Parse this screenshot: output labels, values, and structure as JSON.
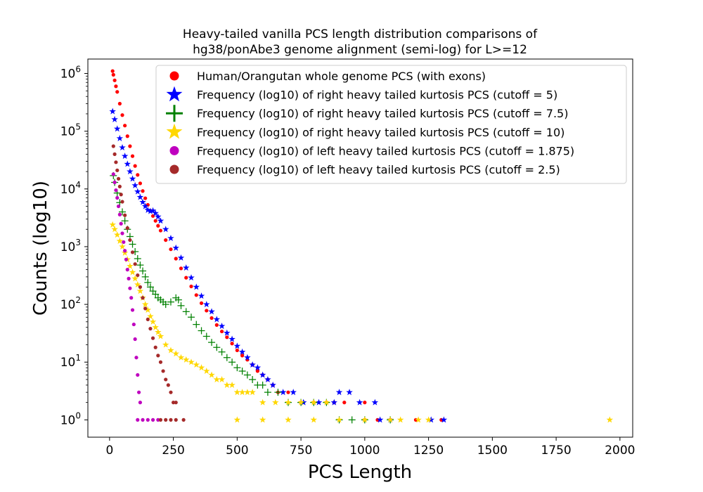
{
  "chart_data": {
    "type": "scatter",
    "title_lines": [
      "Heavy-tailed vanilla PCS length distribution comparisons of",
      "hg38/ponAbe3 genome alignment (semi-log) for L>=12"
    ],
    "xlabel": "PCS Length",
    "ylabel": "Counts (log10)",
    "x_ticks": [
      0,
      250,
      500,
      750,
      1000,
      1250,
      1500,
      1750,
      2000
    ],
    "x_tick_labels": [
      "0",
      "250",
      "500",
      "750",
      "1000",
      "1250",
      "1500",
      "1750",
      "2000"
    ],
    "y_ticks": [
      1,
      10,
      100,
      1000,
      10000,
      100000,
      1000000
    ],
    "y_tick_labels": [
      {
        "base": "10",
        "exp": "0"
      },
      {
        "base": "10",
        "exp": "1"
      },
      {
        "base": "10",
        "exp": "2"
      },
      {
        "base": "10",
        "exp": "3"
      },
      {
        "base": "10",
        "exp": "4"
      },
      {
        "base": "10",
        "exp": "5"
      },
      {
        "base": "10",
        "exp": "6"
      }
    ],
    "xlim": [
      -85,
      2050
    ],
    "ylim_log10": [
      -0.3,
      6.25
    ],
    "yscale": "log",
    "grid": false,
    "legend_position": "top-right",
    "series": [
      {
        "name": "Human/Orangutan whole genome PCS (with exons)",
        "color": "#ff0000",
        "marker": "circle",
        "points": [
          [
            12,
            1100000
          ],
          [
            15,
            950000
          ],
          [
            20,
            760000
          ],
          [
            25,
            600000
          ],
          [
            30,
            480000
          ],
          [
            40,
            300000
          ],
          [
            50,
            190000
          ],
          [
            60,
            125000
          ],
          [
            70,
            82000
          ],
          [
            80,
            55000
          ],
          [
            90,
            37000
          ],
          [
            100,
            25000
          ],
          [
            110,
            17500
          ],
          [
            120,
            12500
          ],
          [
            130,
            9200
          ],
          [
            140,
            6900
          ],
          [
            150,
            5300
          ],
          [
            160,
            4200
          ],
          [
            170,
            3400
          ],
          [
            180,
            2800
          ],
          [
            190,
            2300
          ],
          [
            200,
            1900
          ],
          [
            220,
            1300
          ],
          [
            240,
            900
          ],
          [
            260,
            620
          ],
          [
            280,
            420
          ],
          [
            300,
            290
          ],
          [
            320,
            205
          ],
          [
            340,
            145
          ],
          [
            360,
            105
          ],
          [
            380,
            78
          ],
          [
            400,
            58
          ],
          [
            420,
            44
          ],
          [
            440,
            34
          ],
          [
            460,
            27
          ],
          [
            480,
            21
          ],
          [
            500,
            16
          ],
          [
            520,
            13
          ],
          [
            540,
            11
          ],
          [
            560,
            9
          ],
          [
            580,
            7
          ],
          [
            600,
            6
          ],
          [
            620,
            5
          ],
          [
            640,
            4
          ],
          [
            660,
            3
          ],
          [
            700,
            3
          ],
          [
            750,
            2
          ],
          [
            800,
            2
          ],
          [
            850,
            2
          ],
          [
            880,
            2
          ],
          [
            920,
            2
          ],
          [
            1000,
            2
          ],
          [
            1000,
            1
          ],
          [
            1050,
            1
          ],
          [
            1100,
            1
          ],
          [
            1200,
            1
          ],
          [
            1300,
            1
          ]
        ]
      },
      {
        "name": "Frequency (log10) of right heavy tailed kurtosis PCS (cutoff = 5)",
        "color": "#0000ff",
        "marker": "star",
        "points": [
          [
            12,
            220000
          ],
          [
            20,
            160000
          ],
          [
            30,
            110000
          ],
          [
            40,
            75000
          ],
          [
            50,
            52000
          ],
          [
            60,
            37000
          ],
          [
            70,
            27000
          ],
          [
            80,
            20000
          ],
          [
            90,
            15000
          ],
          [
            100,
            11500
          ],
          [
            110,
            9000
          ],
          [
            120,
            7200
          ],
          [
            130,
            5900
          ],
          [
            140,
            5000
          ],
          [
            150,
            4300
          ],
          [
            160,
            4100
          ],
          [
            170,
            4200
          ],
          [
            180,
            3800
          ],
          [
            190,
            3300
          ],
          [
            200,
            2800
          ],
          [
            220,
            2000
          ],
          [
            240,
            1400
          ],
          [
            260,
            950
          ],
          [
            280,
            640
          ],
          [
            300,
            430
          ],
          [
            320,
            290
          ],
          [
            340,
            200
          ],
          [
            360,
            140
          ],
          [
            380,
            100
          ],
          [
            400,
            75
          ],
          [
            420,
            55
          ],
          [
            440,
            42
          ],
          [
            460,
            32
          ],
          [
            480,
            25
          ],
          [
            500,
            19
          ],
          [
            520,
            15
          ],
          [
            540,
            12
          ],
          [
            560,
            9
          ],
          [
            580,
            8
          ],
          [
            600,
            6
          ],
          [
            620,
            5
          ],
          [
            640,
            4
          ],
          [
            680,
            3
          ],
          [
            720,
            3
          ],
          [
            760,
            2
          ],
          [
            820,
            2
          ],
          [
            880,
            2
          ],
          [
            900,
            3
          ],
          [
            940,
            3
          ],
          [
            980,
            2
          ],
          [
            1040,
            2
          ],
          [
            1060,
            1
          ],
          [
            1100,
            1
          ],
          [
            1260,
            1
          ],
          [
            1310,
            1
          ]
        ]
      },
      {
        "name": "Frequency (log10) of right heavy tailed kurtosis PCS (cutoff = 7.5)",
        "color": "#008000",
        "marker": "plus",
        "points": [
          [
            15,
            17000
          ],
          [
            20,
            13000
          ],
          [
            30,
            8500
          ],
          [
            40,
            5800
          ],
          [
            50,
            4000
          ],
          [
            60,
            2800
          ],
          [
            70,
            2000
          ],
          [
            80,
            1500
          ],
          [
            90,
            1100
          ],
          [
            100,
            820
          ],
          [
            110,
            620
          ],
          [
            120,
            480
          ],
          [
            130,
            380
          ],
          [
            140,
            300
          ],
          [
            150,
            240
          ],
          [
            160,
            200
          ],
          [
            170,
            170
          ],
          [
            180,
            150
          ],
          [
            190,
            130
          ],
          [
            200,
            120
          ],
          [
            210,
            110
          ],
          [
            220,
            100
          ],
          [
            240,
            110
          ],
          [
            260,
            130
          ],
          [
            270,
            120
          ],
          [
            280,
            95
          ],
          [
            300,
            75
          ],
          [
            320,
            60
          ],
          [
            340,
            45
          ],
          [
            360,
            35
          ],
          [
            380,
            28
          ],
          [
            400,
            22
          ],
          [
            420,
            18
          ],
          [
            440,
            15
          ],
          [
            460,
            12
          ],
          [
            480,
            10
          ],
          [
            500,
            8
          ],
          [
            520,
            7
          ],
          [
            540,
            6
          ],
          [
            560,
            5
          ],
          [
            580,
            4
          ],
          [
            600,
            4
          ],
          [
            620,
            3
          ],
          [
            660,
            3
          ],
          [
            700,
            2
          ],
          [
            750,
            2
          ],
          [
            800,
            2
          ],
          [
            850,
            2
          ],
          [
            900,
            1
          ],
          [
            950,
            1
          ],
          [
            1000,
            1
          ],
          [
            1100,
            1
          ]
        ]
      },
      {
        "name": "Frequency (log10) of right heavy tailed kurtosis PCS (cutoff = 10)",
        "color": "#ffd700",
        "marker": "star",
        "points": [
          [
            12,
            2400
          ],
          [
            20,
            2000
          ],
          [
            30,
            1600
          ],
          [
            40,
            1250
          ],
          [
            50,
            1000
          ],
          [
            60,
            780
          ],
          [
            70,
            600
          ],
          [
            80,
            460
          ],
          [
            90,
            360
          ],
          [
            100,
            280
          ],
          [
            110,
            220
          ],
          [
            120,
            170
          ],
          [
            130,
            130
          ],
          [
            140,
            100
          ],
          [
            150,
            80
          ],
          [
            160,
            62
          ],
          [
            170,
            50
          ],
          [
            180,
            40
          ],
          [
            190,
            33
          ],
          [
            200,
            28
          ],
          [
            220,
            20
          ],
          [
            240,
            16
          ],
          [
            260,
            14
          ],
          [
            280,
            12
          ],
          [
            300,
            11
          ],
          [
            320,
            10
          ],
          [
            340,
            9
          ],
          [
            360,
            8
          ],
          [
            380,
            7
          ],
          [
            400,
            6
          ],
          [
            420,
            5
          ],
          [
            440,
            5
          ],
          [
            460,
            4
          ],
          [
            480,
            4
          ],
          [
            500,
            3
          ],
          [
            520,
            3
          ],
          [
            540,
            3
          ],
          [
            560,
            3
          ],
          [
            600,
            2
          ],
          [
            650,
            2
          ],
          [
            700,
            2
          ],
          [
            750,
            2
          ],
          [
            800,
            2
          ],
          [
            850,
            2
          ],
          [
            500,
            1
          ],
          [
            600,
            1
          ],
          [
            700,
            1
          ],
          [
            800,
            1
          ],
          [
            900,
            1
          ],
          [
            1000,
            1
          ],
          [
            1100,
            1
          ],
          [
            1140,
            1
          ],
          [
            1210,
            1
          ],
          [
            1250,
            1
          ],
          [
            1960,
            1
          ]
        ]
      },
      {
        "name": "Frequency (log10) of left heavy tailed kurtosis PCS (cutoff = 1.875)",
        "color": "#bf00bf",
        "marker": "circle",
        "points": [
          [
            15,
            18000
          ],
          [
            20,
            13000
          ],
          [
            25,
            9500
          ],
          [
            30,
            7000
          ],
          [
            35,
            5000
          ],
          [
            40,
            3600
          ],
          [
            45,
            2500
          ],
          [
            50,
            1700
          ],
          [
            55,
            1200
          ],
          [
            60,
            850
          ],
          [
            65,
            600
          ],
          [
            70,
            400
          ],
          [
            75,
            280
          ],
          [
            80,
            190
          ],
          [
            85,
            130
          ],
          [
            90,
            80
          ],
          [
            95,
            45
          ],
          [
            100,
            25
          ],
          [
            105,
            12
          ],
          [
            110,
            6
          ],
          [
            115,
            3
          ],
          [
            120,
            2
          ],
          [
            110,
            1
          ],
          [
            130,
            1
          ],
          [
            150,
            1
          ],
          [
            170,
            1
          ],
          [
            190,
            1
          ]
        ]
      },
      {
        "name": "Frequency (log10) of left heavy tailed kurtosis PCS (cutoff = 2.5)",
        "color": "#a52a2a",
        "marker": "circle",
        "points": [
          [
            15,
            55000
          ],
          [
            20,
            40000
          ],
          [
            25,
            29000
          ],
          [
            30,
            21000
          ],
          [
            35,
            15000
          ],
          [
            40,
            11000
          ],
          [
            45,
            8000
          ],
          [
            50,
            6000
          ],
          [
            60,
            3500
          ],
          [
            70,
            2100
          ],
          [
            80,
            1300
          ],
          [
            90,
            800
          ],
          [
            100,
            500
          ],
          [
            110,
            320
          ],
          [
            120,
            200
          ],
          [
            130,
            130
          ],
          [
            140,
            85
          ],
          [
            150,
            55
          ],
          [
            160,
            38
          ],
          [
            170,
            26
          ],
          [
            180,
            18
          ],
          [
            190,
            13
          ],
          [
            200,
            10
          ],
          [
            210,
            7
          ],
          [
            220,
            5
          ],
          [
            230,
            4
          ],
          [
            240,
            3
          ],
          [
            250,
            2
          ],
          [
            260,
            2
          ],
          [
            200,
            1
          ],
          [
            220,
            1
          ],
          [
            240,
            1
          ],
          [
            260,
            1
          ],
          [
            290,
            1
          ]
        ]
      }
    ]
  }
}
